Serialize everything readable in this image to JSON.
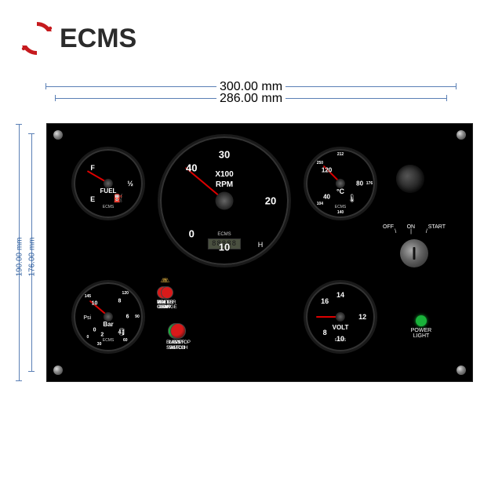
{
  "brand": "ECMS",
  "logo_red": "#c61a1e",
  "dims": {
    "outer_w": "300.00 mm",
    "inner_w": "286.00 mm",
    "outer_h": "190.00 mm",
    "inner_h": "176.00 mm"
  },
  "panel": {
    "bg": "#000000"
  },
  "tacho": {
    "title1": "X100",
    "title2": "RPM",
    "ticks": [
      "0",
      "10",
      "20",
      "30",
      "40"
    ],
    "angles": [
      225,
      180,
      90,
      0,
      315
    ],
    "bottom_label": "40",
    "lcd": "88888",
    "needle_angle": 130
  },
  "fuel": {
    "title": "FUEL",
    "labels": [
      "E",
      "½",
      "F"
    ],
    "angles": [
      225,
      90,
      315
    ],
    "needle_angle": 120
  },
  "temp": {
    "title": "°C",
    "inner": [
      "40",
      "80",
      "120"
    ],
    "inner_angles": [
      225,
      90,
      315
    ],
    "outer": [
      "104",
      "140",
      "176",
      "212",
      "250"
    ],
    "outer_angles": [
      225,
      180,
      90,
      0,
      315
    ],
    "wave": "≈",
    "needle_angle": 135
  },
  "press": {
    "title_top": "Psi",
    "title_bot": "Bar",
    "inner": [
      "0",
      "2",
      "4",
      "6",
      "8",
      "10"
    ],
    "inner_angles": [
      225,
      198,
      144,
      90,
      36,
      315
    ],
    "outer": [
      "0",
      "30",
      "60",
      "90",
      "120",
      "145"
    ],
    "outer_angles": [
      225,
      198,
      144,
      90,
      36,
      315
    ],
    "needle_angle": 130
  },
  "volt": {
    "title": "VOLT",
    "ticks": [
      "8",
      "10",
      "12",
      "14",
      "16"
    ],
    "angles": [
      225,
      180,
      90,
      0,
      315
    ],
    "needle_angle": 90
  },
  "warn": [
    {
      "label": "WATER\nTEMP.",
      "color": "#d81a1a"
    },
    {
      "label": "PRESS\nLOW",
      "color": "#d81a1a"
    },
    {
      "label": "VOLT\nLOW",
      "color": "#d81a1a"
    },
    {
      "label": "BATTER\nCHARGE",
      "color": "#d81a1a"
    }
  ],
  "buttons": [
    {
      "label": "LAMP\nSWITCH",
      "color": "#19b23a"
    },
    {
      "label": "BUZZER\nSWITCH",
      "color": "#19b23a"
    },
    {
      "label": "ENG/STOP\nSWITCH",
      "color": "#d81a1a"
    }
  ],
  "key": {
    "off": "OFF",
    "on": "ON",
    "start": "START"
  },
  "power": {
    "label": "POWER\nLIGHT",
    "color": "#19b23a"
  }
}
